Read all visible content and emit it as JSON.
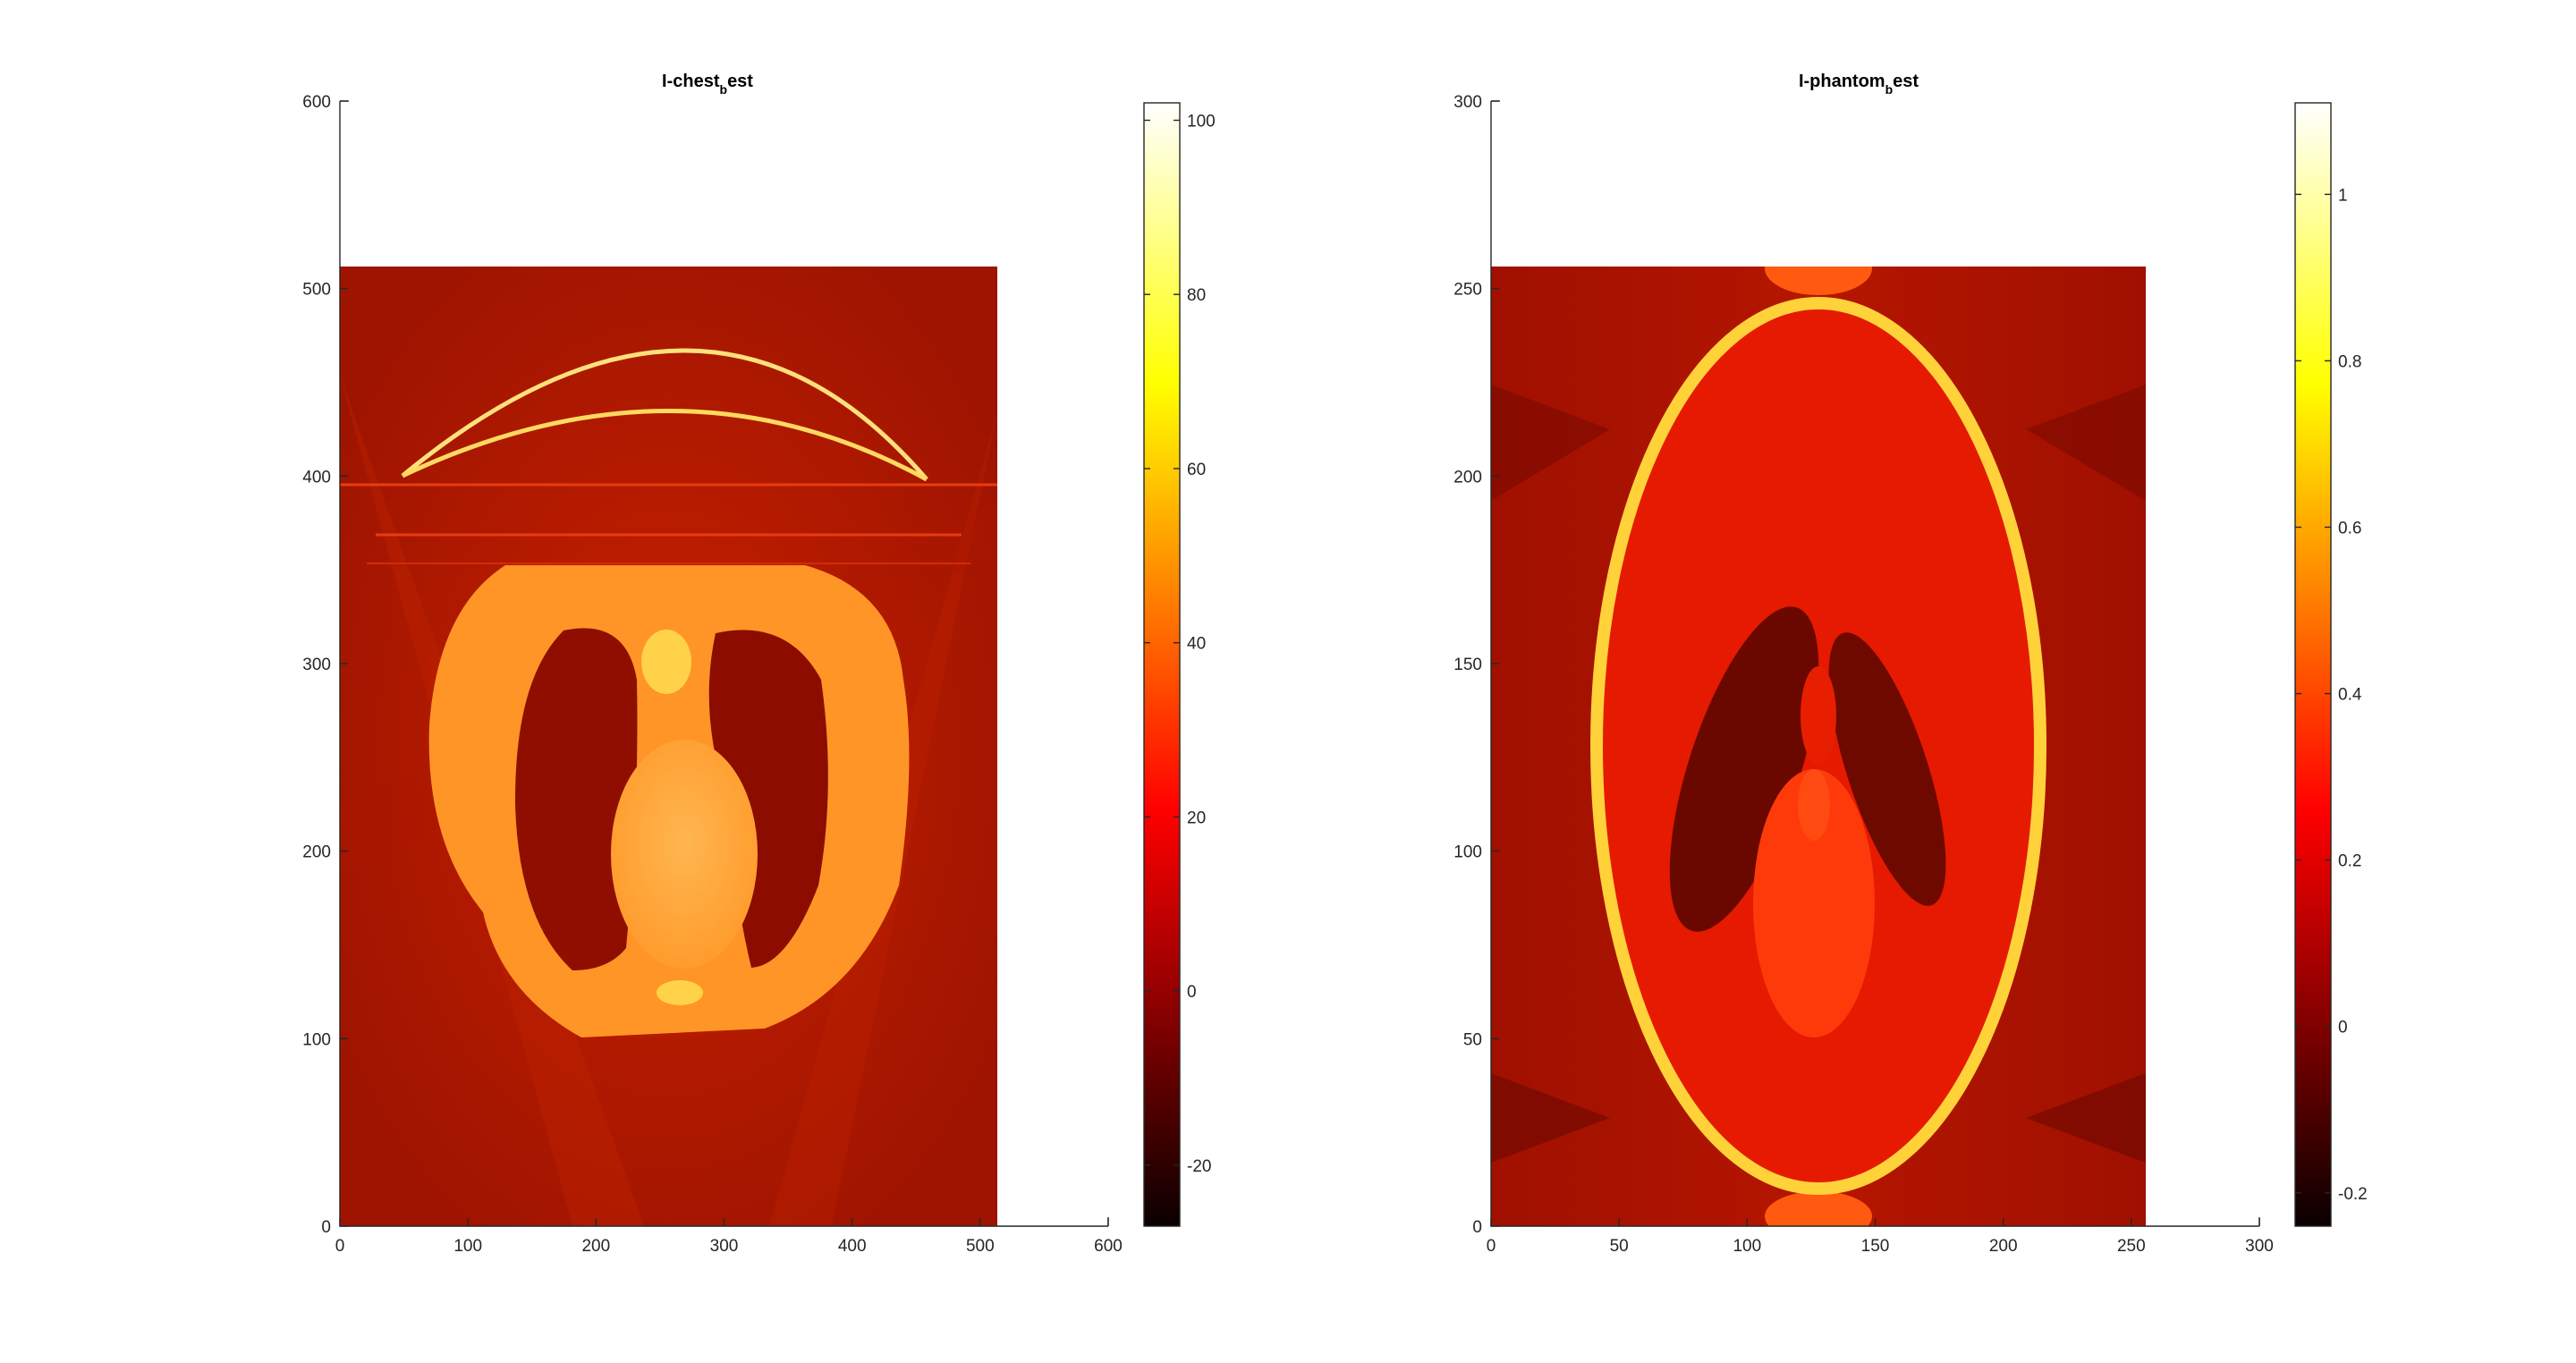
{
  "chart_data": [
    {
      "type": "heatmap",
      "title_main": "I-chest",
      "title_sub": "b",
      "title_rest": "est",
      "xlim": [
        0,
        600
      ],
      "ylim": [
        0,
        600
      ],
      "x_ticks": [
        "0",
        "100",
        "200",
        "300",
        "400",
        "500",
        "600"
      ],
      "y_ticks": [
        "0",
        "100",
        "200",
        "300",
        "400",
        "500",
        "600"
      ],
      "image_extent": {
        "x": [
          0,
          512
        ],
        "y": [
          0,
          512
        ]
      },
      "colormap": "hot",
      "colorbar": {
        "range": [
          -27,
          102
        ],
        "ticks": [
          "-20",
          "0",
          "20",
          "40",
          "60",
          "80",
          "100"
        ],
        "tick_values": [
          -20,
          0,
          20,
          40,
          60,
          80,
          100
        ]
      },
      "colors": {
        "background": "#b81800",
        "anatomy": "#ff8a1c",
        "lung": "#8e0c00",
        "arc": "#ffe680"
      }
    },
    {
      "type": "heatmap",
      "title_main": "I-phantom",
      "title_sub": "b",
      "title_rest": "est",
      "xlim": [
        0,
        300
      ],
      "ylim": [
        0,
        300
      ],
      "x_ticks": [
        "0",
        "50",
        "100",
        "150",
        "200",
        "250",
        "300"
      ],
      "y_ticks": [
        "0",
        "50",
        "100",
        "150",
        "200",
        "250",
        "300"
      ],
      "image_extent": {
        "x": [
          0,
          256
        ],
        "y": [
          0,
          256
        ]
      },
      "colormap": "hot",
      "colorbar": {
        "range": [
          -0.24,
          1.11
        ],
        "ticks": [
          "-0.2",
          "0",
          "0.2",
          "0.4",
          "0.6",
          "0.8",
          "1"
        ],
        "tick_values": [
          -0.2,
          0,
          0.2,
          0.4,
          0.6,
          0.8,
          1
        ]
      },
      "colors": {
        "background": "#a81200",
        "ellipse_fill": "#e81b00",
        "ellipse_ring": "#ffd238",
        "dark_lobe": "#6a0800"
      }
    }
  ]
}
